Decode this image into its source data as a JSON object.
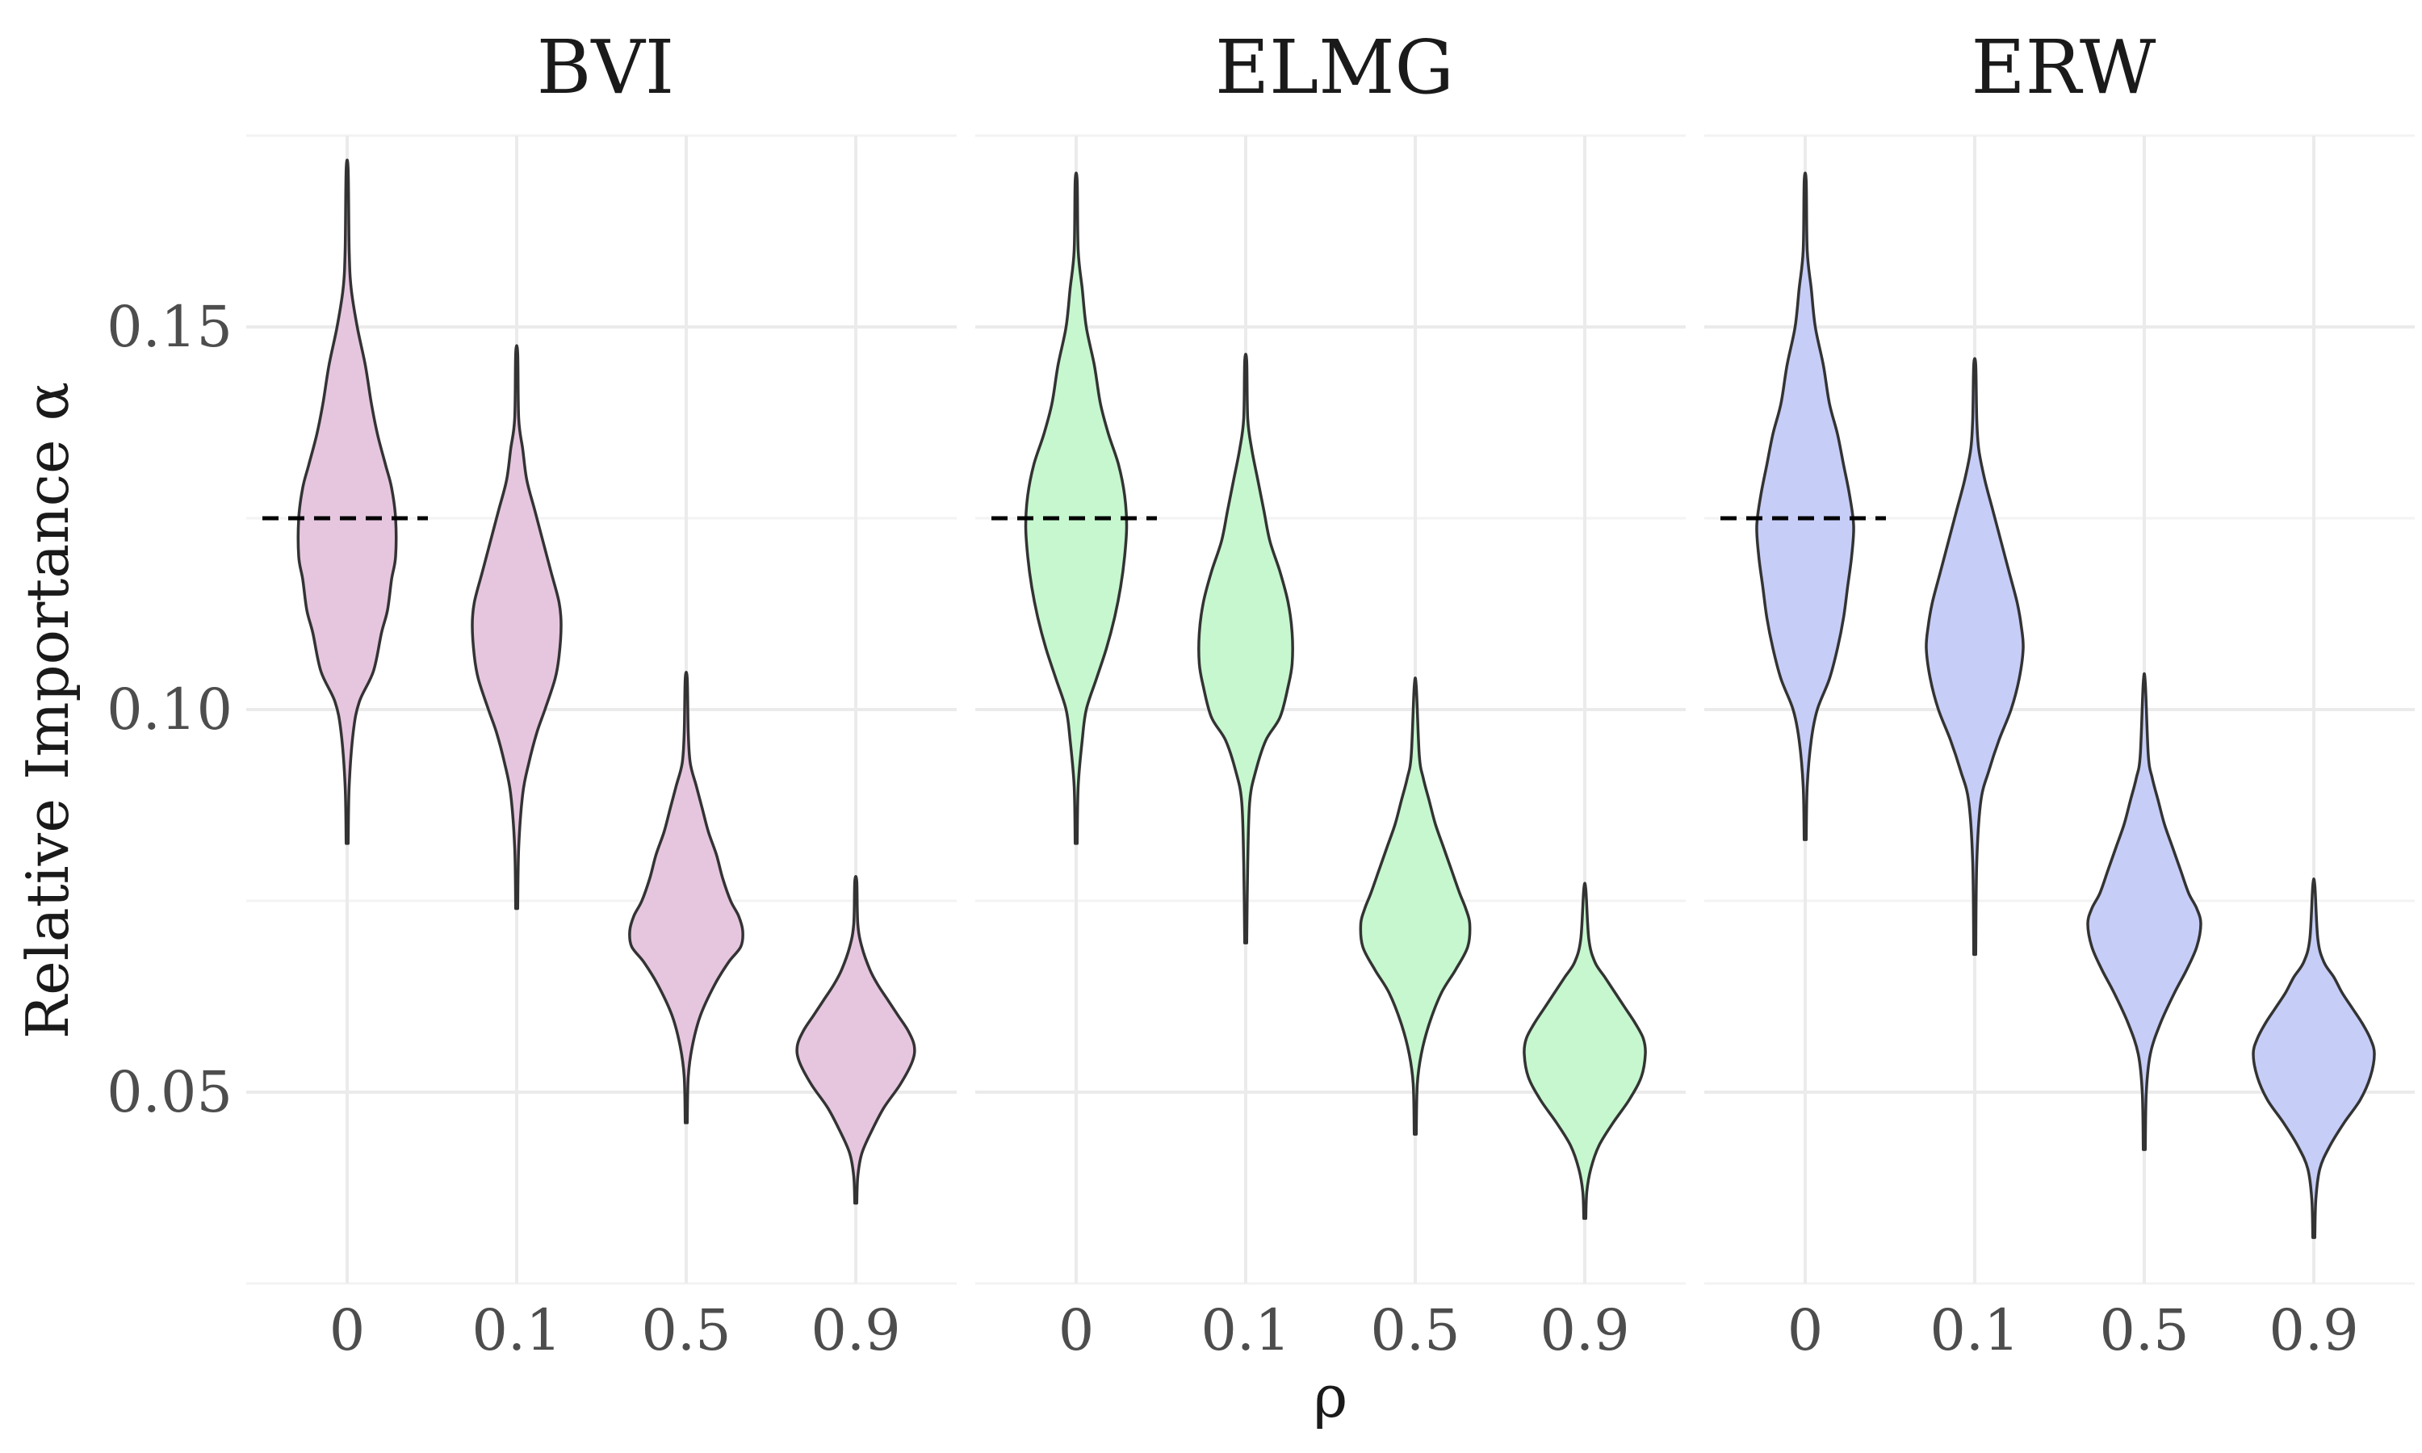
{
  "chart_data": {
    "type": "violin",
    "xlabel": "ρ",
    "ylabel": "Relative Importance α",
    "categories": [
      "0",
      "0.1",
      "0.5",
      "0.9"
    ],
    "ylim": [
      0.025,
      0.175
    ],
    "yticks": [
      0.05,
      0.1,
      0.15
    ],
    "ytick_labels": [
      "0.05",
      "0.10",
      "0.15"
    ],
    "reference_value": 0.125,
    "grid": true,
    "panels": [
      {
        "title": "BVI",
        "fill": "#e6c6df",
        "violins": [
          {
            "category": "0",
            "profile": [
              [
                0.0825,
                0.0005
              ],
              [
                0.09,
                0.001
              ],
              [
                0.097,
                0.003
              ],
              [
                0.101,
                0.006
              ],
              [
                0.105,
                0.013
              ],
              [
                0.11,
                0.017
              ],
              [
                0.113,
                0.02
              ],
              [
                0.117,
                0.022
              ],
              [
                0.12,
                0.024
              ],
              [
                0.125,
                0.024
              ],
              [
                0.129,
                0.022
              ],
              [
                0.132,
                0.019
              ],
              [
                0.136,
                0.015
              ],
              [
                0.14,
                0.012
              ],
              [
                0.145,
                0.009
              ],
              [
                0.15,
                0.005
              ],
              [
                0.155,
                0.002
              ],
              [
                0.16,
                0.001
              ],
              [
                0.1705,
                0.0005
              ]
            ]
          },
          {
            "category": "0.1",
            "profile": [
              [
                0.074,
                0.0005
              ],
              [
                0.082,
                0.001
              ],
              [
                0.089,
                0.003
              ],
              [
                0.093,
                0.006
              ],
              [
                0.097,
                0.01
              ],
              [
                0.1,
                0.014
              ],
              [
                0.104,
                0.019
              ],
              [
                0.107,
                0.021
              ],
              [
                0.111,
                0.022
              ],
              [
                0.114,
                0.021
              ],
              [
                0.118,
                0.017
              ],
              [
                0.122,
                0.013
              ],
              [
                0.126,
                0.009
              ],
              [
                0.13,
                0.005
              ],
              [
                0.134,
                0.003
              ],
              [
                0.138,
                0.001
              ],
              [
                0.1465,
                0.0005
              ]
            ]
          },
          {
            "category": "0.5",
            "profile": [
              [
                0.046,
                0.0005
              ],
              [
                0.052,
                0.001
              ],
              [
                0.056,
                0.003
              ],
              [
                0.06,
                0.007
              ],
              [
                0.064,
                0.014
              ],
              [
                0.067,
                0.021
              ],
              [
                0.069,
                0.027
              ],
              [
                0.071,
                0.028
              ],
              [
                0.073,
                0.026
              ],
              [
                0.075,
                0.022
              ],
              [
                0.078,
                0.018
              ],
              [
                0.081,
                0.015
              ],
              [
                0.084,
                0.011
              ],
              [
                0.087,
                0.008
              ],
              [
                0.09,
                0.005
              ],
              [
                0.093,
                0.002
              ],
              [
                0.097,
                0.001
              ],
              [
                0.104,
                0.0005
              ]
            ]
          },
          {
            "category": "0.9",
            "profile": [
              [
                0.0355,
                0.0005
              ],
              [
                0.039,
                0.001
              ],
              [
                0.042,
                0.003
              ],
              [
                0.045,
                0.008
              ],
              [
                0.048,
                0.014
              ],
              [
                0.051,
                0.022
              ],
              [
                0.054,
                0.028
              ],
              [
                0.056,
                0.029
              ],
              [
                0.058,
                0.026
              ],
              [
                0.06,
                0.021
              ],
              [
                0.062,
                0.016
              ],
              [
                0.064,
                0.011
              ],
              [
                0.066,
                0.007
              ],
              [
                0.069,
                0.003
              ],
              [
                0.072,
                0.001
              ],
              [
                0.0775,
                0.0005
              ]
            ]
          }
        ]
      },
      {
        "title": "ELMG",
        "fill": "#c6f7cf",
        "violins": [
          {
            "category": "0",
            "profile": [
              [
                0.0825,
                0.0005
              ],
              [
                0.09,
                0.001
              ],
              [
                0.096,
                0.003
              ],
              [
                0.1,
                0.005
              ],
              [
                0.104,
                0.01
              ],
              [
                0.108,
                0.015
              ],
              [
                0.112,
                0.019
              ],
              [
                0.116,
                0.022
              ],
              [
                0.12,
                0.024
              ],
              [
                0.124,
                0.025
              ],
              [
                0.128,
                0.024
              ],
              [
                0.132,
                0.021
              ],
              [
                0.136,
                0.016
              ],
              [
                0.14,
                0.012
              ],
              [
                0.145,
                0.009
              ],
              [
                0.15,
                0.005
              ],
              [
                0.155,
                0.003
              ],
              [
                0.16,
                0.001
              ],
              [
                0.169,
                0.0005
              ]
            ]
          },
          {
            "category": "0.1",
            "profile": [
              [
                0.0695,
                0.0005
              ],
              [
                0.08,
                0.001
              ],
              [
                0.088,
                0.002
              ],
              [
                0.092,
                0.005
              ],
              [
                0.096,
                0.01
              ],
              [
                0.099,
                0.017
              ],
              [
                0.103,
                0.021
              ],
              [
                0.106,
                0.023
              ],
              [
                0.11,
                0.023
              ],
              [
                0.114,
                0.021
              ],
              [
                0.118,
                0.017
              ],
              [
                0.122,
                0.012
              ],
              [
                0.126,
                0.009
              ],
              [
                0.13,
                0.006
              ],
              [
                0.134,
                0.003
              ],
              [
                0.138,
                0.001
              ],
              [
                0.1455,
                0.0005
              ]
            ]
          },
          {
            "category": "0.5",
            "profile": [
              [
                0.0445,
                0.0005
              ],
              [
                0.051,
                0.001
              ],
              [
                0.055,
                0.003
              ],
              [
                0.059,
                0.007
              ],
              [
                0.063,
                0.013
              ],
              [
                0.066,
                0.02
              ],
              [
                0.069,
                0.026
              ],
              [
                0.072,
                0.027
              ],
              [
                0.074,
                0.025
              ],
              [
                0.076,
                0.022
              ],
              [
                0.079,
                0.018
              ],
              [
                0.082,
                0.014
              ],
              [
                0.085,
                0.01
              ],
              [
                0.088,
                0.007
              ],
              [
                0.091,
                0.004
              ],
              [
                0.094,
                0.002
              ],
              [
                0.103,
                0.0005
              ]
            ]
          },
          {
            "category": "0.9",
            "profile": [
              [
                0.0335,
                0.0005
              ],
              [
                0.037,
                0.001
              ],
              [
                0.04,
                0.003
              ],
              [
                0.043,
                0.007
              ],
              [
                0.046,
                0.014
              ],
              [
                0.049,
                0.022
              ],
              [
                0.052,
                0.028
              ],
              [
                0.055,
                0.03
              ],
              [
                0.057,
                0.029
              ],
              [
                0.059,
                0.025
              ],
              [
                0.061,
                0.02
              ],
              [
                0.063,
                0.015
              ],
              [
                0.065,
                0.01
              ],
              [
                0.067,
                0.005
              ],
              [
                0.07,
                0.002
              ],
              [
                0.0765,
                0.0005
              ]
            ]
          }
        ]
      },
      {
        "title": "ERW",
        "fill": "#c6cdf7",
        "violins": [
          {
            "category": "0",
            "profile": [
              [
                0.083,
                0.0005
              ],
              [
                0.09,
                0.001
              ],
              [
                0.096,
                0.003
              ],
              [
                0.1,
                0.006
              ],
              [
                0.104,
                0.012
              ],
              [
                0.108,
                0.016
              ],
              [
                0.112,
                0.019
              ],
              [
                0.116,
                0.021
              ],
              [
                0.12,
                0.023
              ],
              [
                0.124,
                0.024
              ],
              [
                0.128,
                0.022
              ],
              [
                0.132,
                0.019
              ],
              [
                0.136,
                0.016
              ],
              [
                0.14,
                0.012
              ],
              [
                0.145,
                0.009
              ],
              [
                0.15,
                0.005
              ],
              [
                0.155,
                0.003
              ],
              [
                0.16,
                0.001
              ],
              [
                0.169,
                0.0005
              ]
            ]
          },
          {
            "category": "0.1",
            "profile": [
              [
                0.068,
                0.0005
              ],
              [
                0.08,
                0.001
              ],
              [
                0.088,
                0.003
              ],
              [
                0.092,
                0.007
              ],
              [
                0.096,
                0.012
              ],
              [
                0.1,
                0.018
              ],
              [
                0.104,
                0.022
              ],
              [
                0.108,
                0.024
              ],
              [
                0.111,
                0.023
              ],
              [
                0.114,
                0.021
              ],
              [
                0.118,
                0.017
              ],
              [
                0.122,
                0.013
              ],
              [
                0.126,
                0.009
              ],
              [
                0.13,
                0.005
              ],
              [
                0.134,
                0.002
              ],
              [
                0.138,
                0.001
              ],
              [
                0.145,
                0.0005
              ]
            ]
          },
          {
            "category": "0.5",
            "profile": [
              [
                0.0425,
                0.0005
              ],
              [
                0.05,
                0.001
              ],
              [
                0.055,
                0.003
              ],
              [
                0.059,
                0.008
              ],
              [
                0.063,
                0.015
              ],
              [
                0.066,
                0.021
              ],
              [
                0.069,
                0.026
              ],
              [
                0.072,
                0.028
              ],
              [
                0.074,
                0.026
              ],
              [
                0.076,
                0.022
              ],
              [
                0.079,
                0.018
              ],
              [
                0.082,
                0.014
              ],
              [
                0.085,
                0.01
              ],
              [
                0.088,
                0.007
              ],
              [
                0.091,
                0.004
              ],
              [
                0.094,
                0.002
              ],
              [
                0.1035,
                0.0005
              ]
            ]
          },
          {
            "category": "0.9",
            "profile": [
              [
                0.031,
                0.0005
              ],
              [
                0.036,
                0.001
              ],
              [
                0.04,
                0.003
              ],
              [
                0.043,
                0.008
              ],
              [
                0.046,
                0.015
              ],
              [
                0.049,
                0.023
              ],
              [
                0.052,
                0.028
              ],
              [
                0.055,
                0.03
              ],
              [
                0.057,
                0.028
              ],
              [
                0.059,
                0.024
              ],
              [
                0.061,
                0.019
              ],
              [
                0.063,
                0.014
              ],
              [
                0.065,
                0.01
              ],
              [
                0.067,
                0.005
              ],
              [
                0.07,
                0.002
              ],
              [
                0.077,
                0.0005
              ]
            ]
          }
        ]
      }
    ]
  }
}
